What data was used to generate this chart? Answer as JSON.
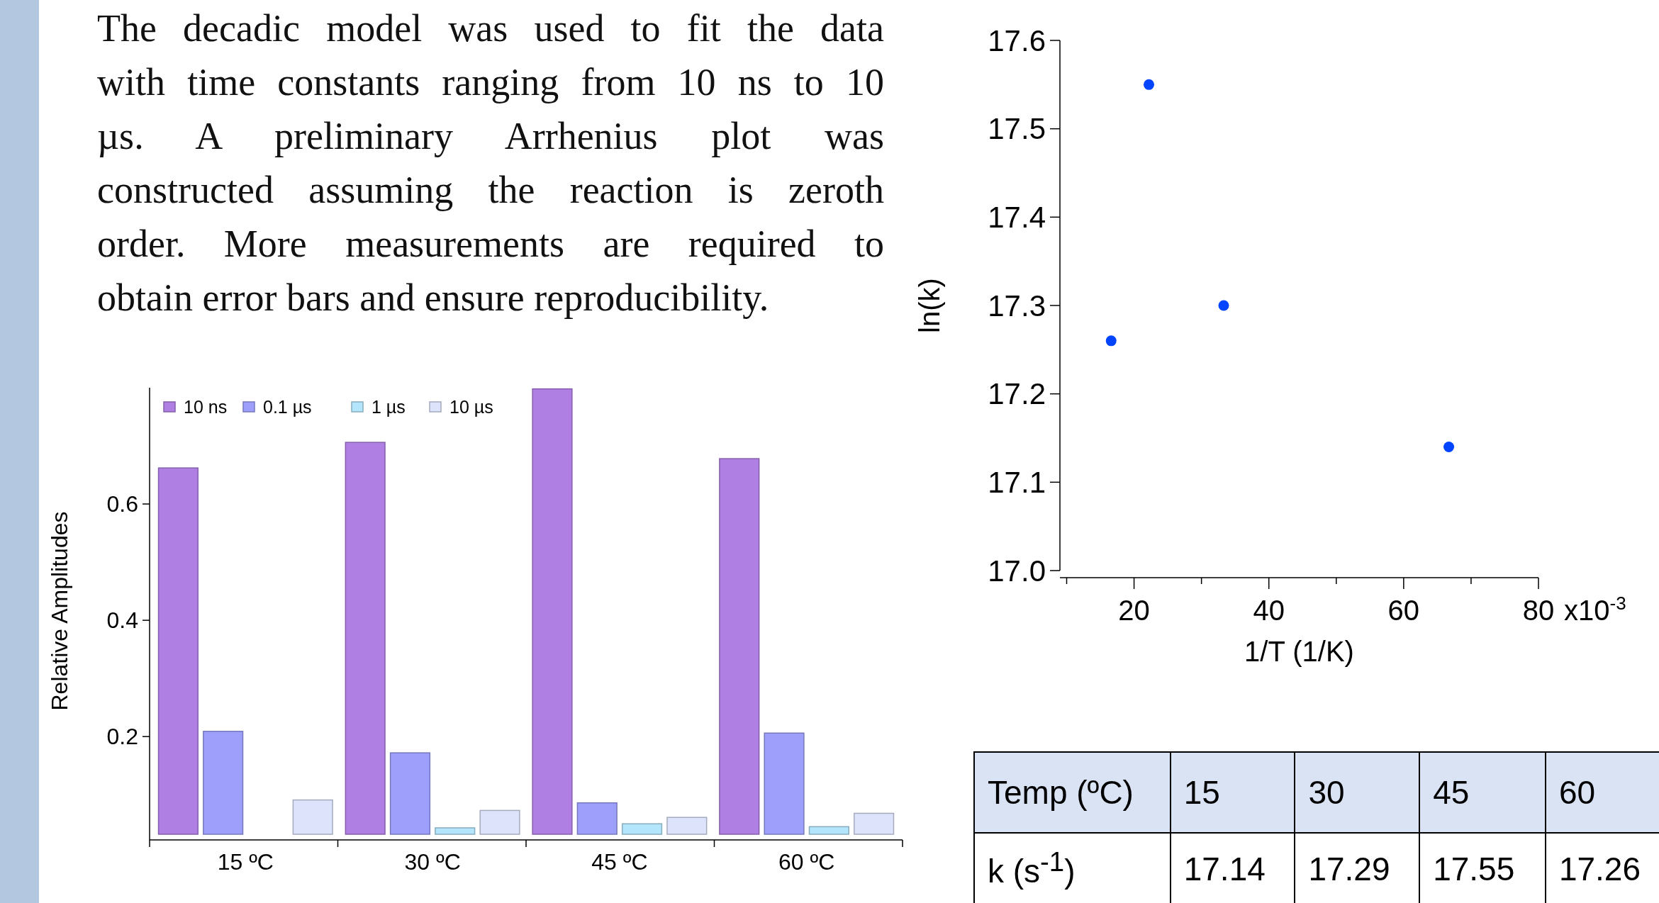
{
  "chart_data": [
    {
      "type": "other",
      "annotations": [
        "The decadic model was used to fit the data",
        "with time constants ranging from 10 ns to 10",
        "µs. A preliminary Arrhenius plot was",
        "constructed assuming the reaction is zeroth",
        "order. More measurements are required to",
        "obtain error bars and ensure reproducibility."
      ]
    },
    {
      "type": "bar",
      "ylabel": "Relative Amplitudes",
      "categories": [
        "15 ºC",
        "30 ºC",
        "45 ºC",
        "60 ºC"
      ],
      "series": [
        {
          "name": "10 ns",
          "color": "#b07fe3",
          "values": [
            0.662,
            0.706,
            0.798,
            0.678
          ]
        },
        {
          "name": "0.1 µs",
          "color": "#9d9ffb",
          "values": [
            0.209,
            0.172,
            0.086,
            0.206
          ]
        },
        {
          "name": "1 µs",
          "color": "#b3e5fc",
          "values": [
            null,
            0.043,
            0.05,
            0.045
          ]
        },
        {
          "name": "10 µs",
          "color": "#dce3fb",
          "values": [
            0.091,
            0.073,
            0.061,
            0.068
          ]
        }
      ],
      "ylim": [
        0.032,
        0.8
      ],
      "yticks": [
        0.2,
        0.4,
        0.6
      ],
      "legend": "top left",
      "grid": false
    },
    {
      "type": "scatter",
      "xlabel": "1/T (1/K)",
      "ylabel": "ln(k)",
      "series": [
        {
          "color": "#0044ff",
          "x": [
            16.6,
            22.2,
            33.3,
            66.7
          ],
          "values": [
            17.26,
            17.55,
            17.3,
            17.14
          ]
        }
      ],
      "xlim": [
        9,
        80
      ],
      "xticks": [
        {
          "value": 10,
          "label": null
        },
        20,
        {
          "value": 30,
          "label": null
        },
        40,
        {
          "value": 50,
          "label": null
        },
        60,
        {
          "value": 70,
          "label": null
        },
        80
      ],
      "annotations": [
        "x10$^{-3}$"
      ],
      "ylim": [
        17.0,
        17.6
      ],
      "yticks": [
        {
          "value": 17.0,
          "label": "17.0"
        },
        17.1,
        17.2,
        17.3,
        17.4,
        17.5,
        17.6
      ],
      "marker": "circle",
      "grid": false
    },
    {
      "type": "heatmap",
      "xlabel": "Temp (ºC)",
      "categories": [
        "15",
        "30",
        "45",
        "60"
      ],
      "y_categories": [
        "k (s$^{-1}$)"
      ],
      "cells": [
        [
          17.14,
          17.29,
          17.55,
          17.26
        ]
      ],
      "data_labels": true
    }
  ]
}
